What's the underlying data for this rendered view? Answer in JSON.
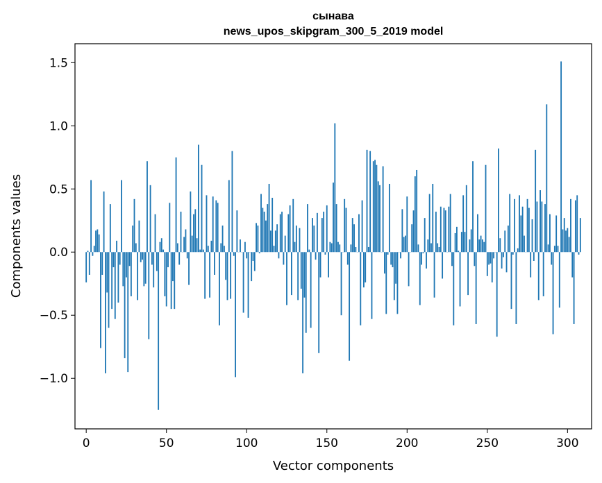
{
  "chart_data": {
    "type": "bar",
    "title": "сынава",
    "subtitle": "news_upos_skipgram_300_5_2019 model",
    "xlabel": "Vector components",
    "ylabel": "Components values",
    "xlim": [
      -7,
      315
    ],
    "ylim": [
      -1.4,
      1.65
    ],
    "xticks": [
      0,
      50,
      100,
      150,
      200,
      250,
      300
    ],
    "yticks": [
      -1.0,
      -0.5,
      0.0,
      0.5,
      1.0,
      1.5
    ],
    "xtick_labels": [
      "0",
      "50",
      "100",
      "150",
      "200",
      "250",
      "300"
    ],
    "ytick_labels": [
      "−1.0",
      "−0.5",
      "0.0",
      "0.5",
      "1.0",
      "1.5"
    ],
    "bar_color": "#1f77b4",
    "values": [
      -0.24,
      0.01,
      -0.18,
      0.57,
      -0.03,
      0.05,
      0.17,
      0.18,
      0.14,
      -0.76,
      -0.18,
      0.48,
      -0.96,
      -0.32,
      -0.6,
      0.38,
      -0.45,
      -0.12,
      -0.53,
      0.09,
      -0.4,
      -0.1,
      0.57,
      -0.27,
      -0.84,
      -0.2,
      -0.95,
      -0.11,
      -0.35,
      0.21,
      0.42,
      0.07,
      -0.38,
      0.25,
      -0.08,
      -0.06,
      -0.27,
      -0.25,
      0.72,
      -0.69,
      0.53,
      -0.1,
      -0.28,
      0.3,
      -0.15,
      -1.25,
      0.08,
      0.11,
      0.02,
      -0.35,
      -0.43,
      -0.12,
      0.39,
      -0.45,
      -0.23,
      -0.45,
      0.75,
      0.07,
      -0.1,
      0.32,
      0.0,
      0.12,
      0.18,
      -0.05,
      -0.26,
      0.48,
      0.13,
      0.3,
      0.34,
      0.11,
      0.85,
      0.02,
      0.69,
      0.02,
      -0.37,
      0.45,
      0.05,
      -0.36,
      0.09,
      0.44,
      -0.18,
      0.41,
      0.39,
      -0.58,
      0.07,
      0.21,
      0.05,
      -0.22,
      -0.38,
      0.57,
      -0.37,
      0.8,
      -0.03,
      -0.99,
      0.33,
      0.0,
      0.1,
      0.0,
      -0.48,
      0.08,
      -0.05,
      -0.52,
      0.0,
      -0.23,
      -0.07,
      -0.15,
      0.23,
      0.21,
      -0.01,
      0.46,
      0.35,
      0.32,
      0.25,
      0.38,
      0.54,
      0.17,
      0.43,
      0.05,
      0.17,
      0.22,
      -0.05,
      0.3,
      0.32,
      -0.1,
      0.13,
      -0.42,
      0.3,
      0.37,
      -0.34,
      0.42,
      0.08,
      0.21,
      -0.38,
      0.19,
      -0.29,
      -0.96,
      -0.36,
      -0.64,
      0.38,
      0.02,
      -0.6,
      0.27,
      0.21,
      -0.06,
      0.31,
      -0.8,
      -0.2,
      0.27,
      0.32,
      -0.02,
      0.37,
      -0.2,
      0.08,
      0.07,
      0.55,
      1.02,
      0.38,
      0.08,
      0.06,
      -0.5,
      0.0,
      0.42,
      0.35,
      -0.1,
      -0.86,
      0.06,
      0.27,
      0.22,
      0.04,
      0.0,
      0.3,
      -0.58,
      0.41,
      -0.28,
      -0.24,
      0.81,
      0.04,
      0.8,
      -0.53,
      0.72,
      0.73,
      0.69,
      0.56,
      0.53,
      0.0,
      0.68,
      -0.17,
      -0.49,
      -0.02,
      0.54,
      -0.1,
      -0.12,
      -0.38,
      -0.25,
      -0.49,
      0.0,
      -0.05,
      0.34,
      0.12,
      0.13,
      0.44,
      -0.27,
      0.0,
      0.22,
      0.33,
      0.6,
      0.65,
      0.06,
      -0.42,
      -0.1,
      -0.01,
      0.27,
      -0.13,
      0.1,
      0.46,
      0.07,
      0.54,
      -0.36,
      0.32,
      0.07,
      0.04,
      0.36,
      -0.21,
      0.35,
      0.33,
      0.0,
      0.36,
      0.46,
      -0.11,
      -0.58,
      0.15,
      0.2,
      0.01,
      -0.43,
      0.16,
      0.45,
      0.16,
      0.53,
      -0.34,
      0.1,
      0.18,
      0.72,
      -0.11,
      -0.57,
      0.3,
      0.1,
      0.13,
      0.1,
      0.08,
      0.69,
      -0.19,
      -0.1,
      -0.09,
      -0.24,
      -0.05,
      0.0,
      -0.67,
      0.82,
      0.11,
      -0.13,
      -0.04,
      0.17,
      -0.16,
      0.21,
      0.46,
      -0.45,
      -0.02,
      0.42,
      -0.57,
      0.03,
      0.45,
      0.29,
      0.36,
      0.13,
      0.0,
      0.42,
      0.35,
      -0.2,
      0.26,
      -0.07,
      0.81,
      0.4,
      -0.38,
      0.49,
      0.4,
      -0.35,
      0.38,
      1.17,
      0.06,
      0.3,
      -0.1,
      -0.65,
      0.05,
      0.29,
      0.05,
      -0.44,
      1.51,
      0.18,
      0.27,
      0.17,
      0.19,
      0.12,
      0.42,
      -0.2,
      -0.57,
      0.41,
      0.45,
      -0.02,
      0.27
    ]
  }
}
